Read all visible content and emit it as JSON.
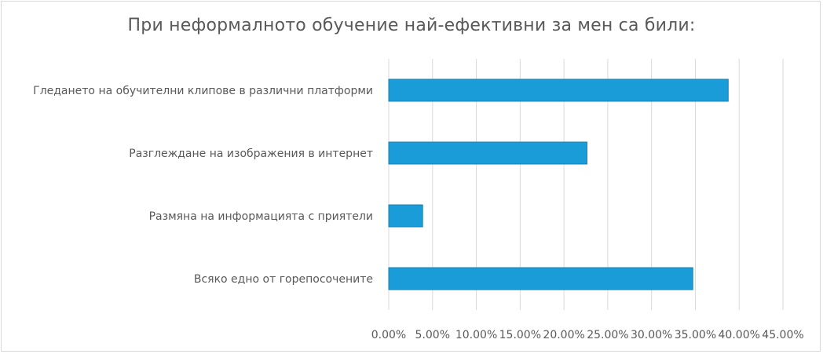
{
  "chart_data": {
    "type": "bar",
    "orientation": "horizontal",
    "title": "При неформалното обучение най-ефективни за мен са били:",
    "categories": [
      "Гледането на обучителни клипове в различни платформи",
      "Разглеждане на изображения в интернет",
      "Размяна на информацията с приятели",
      "Всяко едно от горепосочените"
    ],
    "values": [
      0.3875,
      0.2263,
      0.0387,
      0.3471
    ],
    "value_format": "percent_2dp",
    "xlim": [
      0,
      0.45
    ],
    "xticks": [
      0,
      0.05,
      0.1,
      0.15,
      0.2,
      0.25,
      0.3,
      0.35,
      0.4,
      0.45
    ],
    "xtick_labels": [
      "0.00%",
      "5.00%",
      "10.00%",
      "15.00%",
      "20.00%",
      "25.00%",
      "30.00%",
      "35.00%",
      "40.00%",
      "45.00%"
    ],
    "grid": true,
    "legend": "none",
    "colors": {
      "bar": "#1a9cd9",
      "bar_edge": "#1581b5",
      "grid": "#d9d9d9",
      "text": "#595959"
    }
  }
}
